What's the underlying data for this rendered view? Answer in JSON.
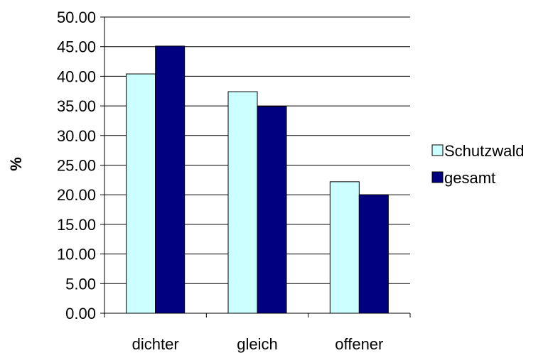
{
  "chart_data": {
    "type": "bar",
    "title": "",
    "xlabel": "",
    "ylabel": "%",
    "ylim": [
      0,
      50
    ],
    "ytick_step": 5,
    "ytick_labels": [
      "0.00",
      "5.00",
      "10.00",
      "15.00",
      "20.00",
      "25.00",
      "30.00",
      "35.00",
      "40.00",
      "45.00",
      "50.00"
    ],
    "categories": [
      "dichter",
      "gleich",
      "offener"
    ],
    "series": [
      {
        "name": "Schutzwald",
        "values": [
          40.4,
          37.4,
          22.2
        ],
        "color": "#CCFFFF"
      },
      {
        "name": "gesamt",
        "values": [
          45.1,
          34.9,
          20.0
        ],
        "color": "#000080"
      }
    ],
    "grid": true,
    "legend_position": "right"
  }
}
